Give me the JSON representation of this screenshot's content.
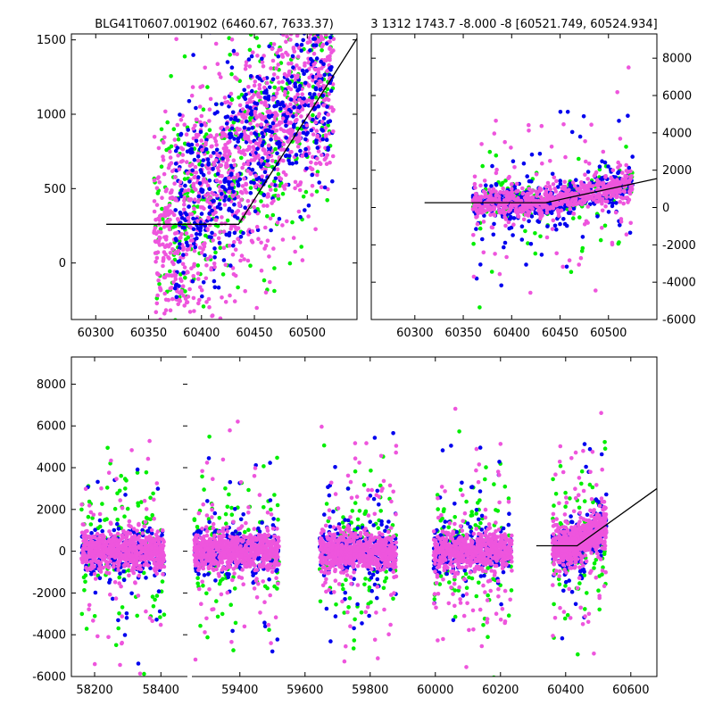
{
  "titles": {
    "left": "BLG41T0607.001902 (6460.67, 7633.37)",
    "right": "3 1312 1743.7 -8.000 -8 [60521.749, 60524.934]"
  },
  "colors": {
    "series_a": "#ee55dd",
    "series_b": "#0000ee",
    "series_c": "#00ee00",
    "fit": "#000000"
  },
  "chart_data": [
    {
      "type": "scatter",
      "panel": "top-left zoom",
      "xlim": [
        60277,
        60547
      ],
      "ylim": [
        -380,
        1540
      ],
      "xticks": [
        60300,
        60350,
        60400,
        60450,
        60500
      ],
      "yticks": [
        0,
        500,
        1000,
        1500
      ],
      "ytick_side": "left",
      "grid": false,
      "data_x_range": [
        60355,
        60525
      ],
      "series": [
        {
          "color": "series_a",
          "values": "dense points, mostly 0 to 1500, rising with x"
        },
        {
          "color": "series_b",
          "values": "dense points, mostly 0 to 1500, rising with x"
        },
        {
          "color": "series_c",
          "values": "sparser points, -300 to 1500"
        }
      ],
      "fit_line": [
        [
          60310,
          260
        ],
        [
          60435,
          260
        ],
        [
          60547,
          1510
        ]
      ]
    },
    {
      "type": "scatter",
      "panel": "top-right",
      "xlim": [
        60255,
        60550
      ],
      "ylim": [
        -6000,
        9300
      ],
      "xticks": [
        60300,
        60350,
        60400,
        60450,
        60500
      ],
      "yticks": [
        -6000,
        -4000,
        -2000,
        0,
        2000,
        4000,
        6000,
        8000
      ],
      "ytick_side": "right",
      "grid": false,
      "data_x_range": [
        60360,
        60525
      ],
      "series": [
        {
          "color": "series_a",
          "values": "core -500 to 1500, outliers -5500 to 7700"
        },
        {
          "color": "series_b",
          "values": "core -500 to 1500, outliers to 7600"
        },
        {
          "color": "series_c",
          "values": "core -500 to 1200, outliers -3000 to 4000"
        }
      ],
      "fit_line": [
        [
          60310,
          260
        ],
        [
          60435,
          260
        ],
        [
          60550,
          1550
        ]
      ]
    },
    {
      "type": "scatter",
      "panel": "bottom (broken x axis, two segments)",
      "segments": [
        {
          "xlim": [
            58130,
            58480
          ],
          "xticks": [
            58200,
            58400
          ],
          "data_x_range": [
            58160,
            58410
          ]
        },
        {
          "xlim": [
            59250,
            60680
          ],
          "xticks": [
            59400,
            59600,
            59800,
            60000,
            60200,
            60400,
            60600
          ],
          "seasons": [
            [
              59260,
              59520
            ],
            [
              59645,
              59880
            ],
            [
              59995,
              60235
            ],
            [
              60360,
              60525
            ]
          ]
        }
      ],
      "ylim": [
        -6000,
        9300
      ],
      "yticks": [
        -6000,
        -4000,
        -2000,
        0,
        2000,
        4000,
        6000,
        8000
      ],
      "ytick_side": "left",
      "grid": false,
      "series": [
        {
          "color": "series_a",
          "values": "core -1000 to 1000 each season, outliers -5800 to 9000"
        },
        {
          "color": "series_b",
          "values": "core -1000 to 1000, outliers -5700 to 8600"
        },
        {
          "color": "series_c",
          "values": "scattered -5800 to 9300"
        }
      ],
      "fit_line": [
        [
          60310,
          260
        ],
        [
          60435,
          260
        ],
        [
          60680,
          3000
        ]
      ]
    }
  ]
}
